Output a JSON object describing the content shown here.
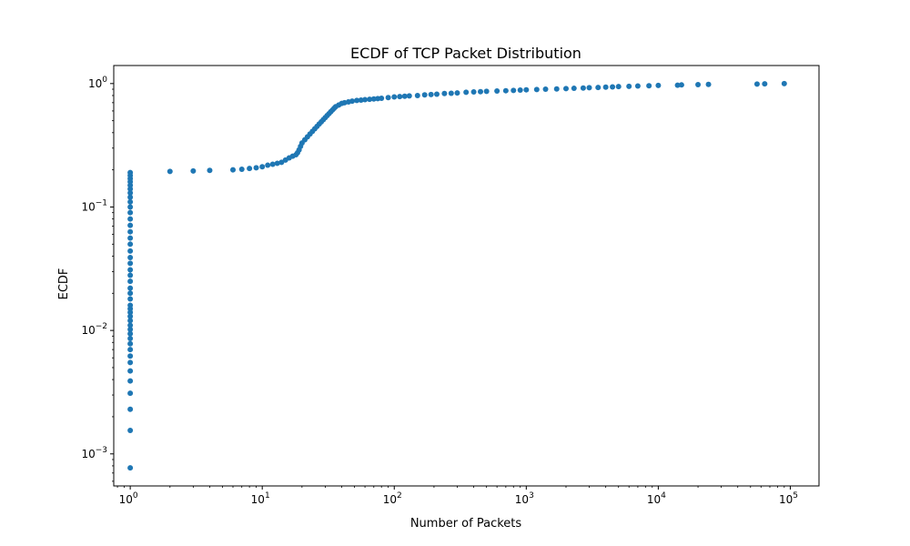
{
  "chart_data": {
    "type": "scatter",
    "title": "ECDF of TCP Packet Distribution",
    "xlabel": "Number of Packets",
    "ylabel": "ECDF",
    "xscale": "log",
    "yscale": "log",
    "xlim": [
      0.75,
      165000
    ],
    "ylim": [
      0.00055,
      1.4
    ],
    "grid": false,
    "legend": "none",
    "marker_color": "#1f77b4",
    "x_ticks": [
      {
        "value": 1,
        "base": "10",
        "exp": "0"
      },
      {
        "value": 10,
        "base": "10",
        "exp": "1"
      },
      {
        "value": 100,
        "base": "10",
        "exp": "2"
      },
      {
        "value": 1000,
        "base": "10",
        "exp": "3"
      },
      {
        "value": 10000,
        "base": "10",
        "exp": "4"
      },
      {
        "value": 100000,
        "base": "10",
        "exp": "5"
      }
    ],
    "y_ticks": [
      {
        "value": 0.001,
        "base": "10",
        "exp": "−3"
      },
      {
        "value": 0.01,
        "base": "10",
        "exp": "−2"
      },
      {
        "value": 0.1,
        "base": "10",
        "exp": "−1"
      },
      {
        "value": 1,
        "base": "10",
        "exp": "0"
      }
    ],
    "series": [
      {
        "points": [
          [
            1,
            0.00077
          ],
          [
            1,
            0.00155
          ],
          [
            1,
            0.0023
          ],
          [
            1,
            0.0031
          ],
          [
            1,
            0.0039
          ],
          [
            1,
            0.0047
          ],
          [
            1,
            0.0055
          ],
          [
            1,
            0.0062
          ],
          [
            1,
            0.007
          ],
          [
            1,
            0.0078
          ],
          [
            1,
            0.0086
          ],
          [
            1,
            0.0094
          ],
          [
            1,
            0.0102
          ],
          [
            1,
            0.011
          ],
          [
            1,
            0.012
          ],
          [
            1,
            0.013
          ],
          [
            1,
            0.014
          ],
          [
            1,
            0.015
          ],
          [
            1,
            0.016
          ],
          [
            1,
            0.018
          ],
          [
            1,
            0.02
          ],
          [
            1,
            0.022
          ],
          [
            1,
            0.025
          ],
          [
            1,
            0.028
          ],
          [
            1,
            0.031
          ],
          [
            1,
            0.035
          ],
          [
            1,
            0.039
          ],
          [
            1,
            0.044
          ],
          [
            1,
            0.05
          ],
          [
            1,
            0.056
          ],
          [
            1,
            0.063
          ],
          [
            1,
            0.071
          ],
          [
            1,
            0.08
          ],
          [
            1,
            0.09
          ],
          [
            1,
            0.1
          ],
          [
            1,
            0.11
          ],
          [
            1,
            0.12
          ],
          [
            1,
            0.13
          ],
          [
            1,
            0.14
          ],
          [
            1,
            0.15
          ],
          [
            1,
            0.16
          ],
          [
            1,
            0.17
          ],
          [
            1,
            0.18
          ],
          [
            1,
            0.19
          ],
          [
            2,
            0.194
          ],
          [
            3,
            0.196
          ],
          [
            4,
            0.198
          ],
          [
            6,
            0.2
          ],
          [
            7,
            0.202
          ],
          [
            8,
            0.205
          ],
          [
            9,
            0.208
          ],
          [
            10,
            0.212
          ],
          [
            11,
            0.218
          ],
          [
            12,
            0.222
          ],
          [
            13,
            0.226
          ],
          [
            14,
            0.23
          ],
          [
            15,
            0.24
          ],
          [
            16,
            0.25
          ],
          [
            17,
            0.258
          ],
          [
            18,
            0.265
          ],
          [
            18.5,
            0.275
          ],
          [
            19,
            0.29
          ],
          [
            19.5,
            0.31
          ],
          [
            20,
            0.33
          ],
          [
            21,
            0.35
          ],
          [
            22,
            0.37
          ],
          [
            23,
            0.39
          ],
          [
            24,
            0.41
          ],
          [
            25,
            0.43
          ],
          [
            26,
            0.45
          ],
          [
            27,
            0.47
          ],
          [
            28,
            0.49
          ],
          [
            29,
            0.51
          ],
          [
            30,
            0.53
          ],
          [
            31,
            0.55
          ],
          [
            32,
            0.57
          ],
          [
            33,
            0.59
          ],
          [
            34,
            0.61
          ],
          [
            35,
            0.63
          ],
          [
            36,
            0.65
          ],
          [
            38,
            0.67
          ],
          [
            40,
            0.69
          ],
          [
            42,
            0.7
          ],
          [
            45,
            0.71
          ],
          [
            48,
            0.72
          ],
          [
            52,
            0.73
          ],
          [
            56,
            0.735
          ],
          [
            60,
            0.74
          ],
          [
            65,
            0.745
          ],
          [
            70,
            0.75
          ],
          [
            75,
            0.755
          ],
          [
            80,
            0.76
          ],
          [
            90,
            0.77
          ],
          [
            100,
            0.78
          ],
          [
            110,
            0.785
          ],
          [
            120,
            0.79
          ],
          [
            130,
            0.795
          ],
          [
            150,
            0.8
          ],
          [
            170,
            0.81
          ],
          [
            190,
            0.815
          ],
          [
            210,
            0.82
          ],
          [
            240,
            0.83
          ],
          [
            270,
            0.835
          ],
          [
            300,
            0.84
          ],
          [
            350,
            0.85
          ],
          [
            400,
            0.855
          ],
          [
            450,
            0.86
          ],
          [
            500,
            0.865
          ],
          [
            600,
            0.87
          ],
          [
            700,
            0.875
          ],
          [
            800,
            0.88
          ],
          [
            900,
            0.885
          ],
          [
            1000,
            0.89
          ],
          [
            1200,
            0.895
          ],
          [
            1400,
            0.9
          ],
          [
            1700,
            0.905
          ],
          [
            2000,
            0.91
          ],
          [
            2300,
            0.915
          ],
          [
            2700,
            0.92
          ],
          [
            3000,
            0.925
          ],
          [
            3500,
            0.93
          ],
          [
            4000,
            0.935
          ],
          [
            4500,
            0.94
          ],
          [
            5000,
            0.945
          ],
          [
            6000,
            0.95
          ],
          [
            7000,
            0.955
          ],
          [
            8500,
            0.96
          ],
          [
            10000,
            0.965
          ],
          [
            14000,
            0.97
          ],
          [
            15000,
            0.975
          ],
          [
            20000,
            0.98
          ],
          [
            24000,
            0.985
          ],
          [
            56000,
            0.99
          ],
          [
            64000,
            0.995
          ],
          [
            90000,
            1.0
          ]
        ]
      }
    ]
  }
}
